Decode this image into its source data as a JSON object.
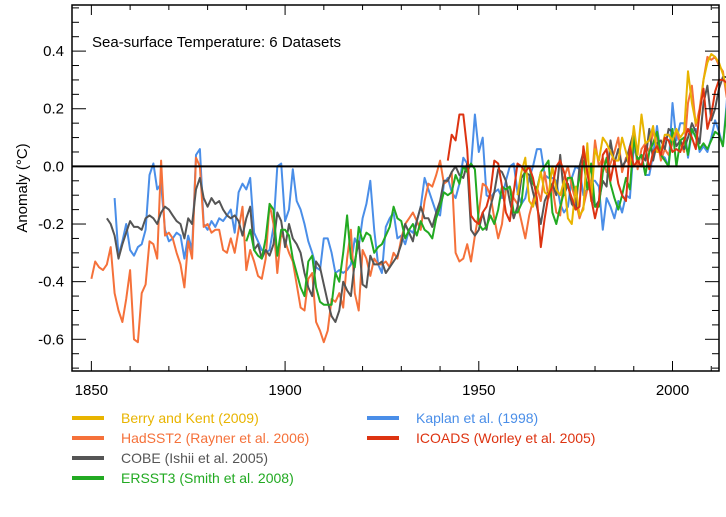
{
  "chart_data": {
    "type": "line",
    "title": "Sea-surface Temperature: 6 Datasets",
    "xlabel": "",
    "ylabel": "Anomaly (°C)",
    "xlim": [
      1845,
      2012
    ],
    "ylim": [
      -0.71,
      0.56
    ],
    "xticks": [
      1850,
      1900,
      1950,
      2000
    ],
    "xtick_labels": [
      "1850",
      "1900",
      "1950",
      "2000"
    ],
    "yticks": [
      -0.6,
      -0.4,
      -0.2,
      0.0,
      0.2,
      0.4
    ],
    "ytick_labels": [
      "-0.6",
      "-0.4",
      "-0.2",
      "0.0",
      "0.2",
      "0.4"
    ],
    "zero_line": true,
    "grid": false,
    "legend_position": "bottom",
    "series": [
      {
        "name": "Berry and Kent (2009)",
        "color": "#E8B400",
        "x_start": 1960,
        "values": [
          -0.1,
          -0.02,
          0.03,
          -0.12,
          -0.14,
          -0.09,
          -0.02,
          -0.09,
          -0.1,
          0.0,
          -0.08,
          -0.1,
          -0.05,
          -0.18,
          -0.2,
          -0.07,
          -0.17,
          -0.15,
          0.08,
          -0.12,
          0.06,
          0.02,
          0.1,
          0.08,
          0.05,
          0.02,
          0.02,
          0.1,
          0.05,
          0.0,
          0.14,
          0.04,
          0.18,
          0.08,
          0.09,
          0.14,
          0.05,
          0.05,
          0.11,
          0.11,
          0.09,
          0.13,
          0.1,
          0.12,
          0.33,
          0.22,
          0.15,
          0.18,
          0.3,
          0.36,
          0.39,
          0.38,
          0.36,
          0.32,
          0.27
        ]
      },
      {
        "name": "HadSST2 (Rayner et al. 2006)",
        "color": "#F5713A",
        "x_start": 1850,
        "values": [
          -0.39,
          -0.33,
          -0.35,
          -0.36,
          -0.34,
          -0.28,
          -0.44,
          -0.5,
          -0.54,
          -0.46,
          -0.36,
          -0.6,
          -0.61,
          -0.44,
          -0.41,
          -0.26,
          -0.27,
          -0.32,
          0.02,
          -0.24,
          -0.23,
          -0.25,
          -0.3,
          -0.34,
          -0.42,
          -0.26,
          -0.32,
          0.03,
          0.0,
          -0.21,
          -0.2,
          -0.23,
          -0.22,
          -0.22,
          -0.29,
          -0.3,
          -0.25,
          -0.3,
          -0.22,
          -0.14,
          -0.36,
          -0.29,
          -0.33,
          -0.38,
          -0.39,
          -0.32,
          -0.13,
          -0.2,
          -0.37,
          -0.23,
          -0.26,
          -0.3,
          -0.33,
          -0.41,
          -0.49,
          -0.5,
          -0.39,
          -0.37,
          -0.54,
          -0.57,
          -0.61,
          -0.57,
          -0.46,
          -0.47,
          -0.44,
          -0.49,
          -0.32,
          -0.22,
          -0.44,
          -0.5,
          -0.29,
          -0.32,
          -0.38,
          -0.32,
          -0.34,
          -0.34,
          -0.33,
          -0.35,
          -0.3,
          -0.32,
          -0.25,
          -0.2,
          -0.18,
          -0.16,
          -0.19,
          -0.22,
          -0.12,
          -0.06,
          -0.07,
          -0.03,
          0.02,
          -0.06,
          -0.05,
          -0.02,
          -0.3,
          -0.33,
          -0.32,
          -0.27,
          -0.33,
          -0.24,
          -0.16,
          -0.06,
          -0.07,
          -0.1,
          -0.18,
          -0.25,
          -0.2,
          -0.08,
          -0.07,
          -0.11,
          -0.13,
          -0.19,
          -0.25,
          -0.17,
          -0.12,
          -0.07,
          -0.12,
          -0.02,
          -0.11,
          -0.07,
          -0.16,
          -0.17,
          -0.04,
          0.0,
          -0.07,
          -0.12,
          -0.18,
          -0.14,
          -0.08,
          -0.08,
          0.09,
          0.0,
          0.03,
          -0.02,
          0.01,
          0.05,
          0.1,
          -0.02,
          0.03,
          0.0,
          0.12,
          -0.01,
          0.06,
          0.08,
          0.05,
          0.12,
          0.1,
          0.02,
          0.06,
          0.04,
          0.08,
          0.12,
          0.08,
          0.05,
          0.22,
          0.28,
          0.14,
          0.2,
          0.3,
          0.38,
          0.37,
          0.38,
          0.35,
          0.33,
          0.24,
          0.37
        ]
      },
      {
        "name": "COBE (Ishii et al. 2005)",
        "color": "#555555",
        "x_start": 1854,
        "values": [
          -0.18,
          -0.2,
          -0.24,
          -0.32,
          -0.27,
          -0.23,
          -0.19,
          -0.21,
          -0.21,
          -0.22,
          -0.18,
          -0.17,
          -0.18,
          -0.2,
          -0.16,
          -0.14,
          -0.15,
          -0.17,
          -0.19,
          -0.2,
          -0.25,
          -0.18,
          -0.2,
          -0.08,
          -0.04,
          -0.11,
          -0.14,
          -0.11,
          -0.13,
          -0.12,
          -0.15,
          -0.17,
          -0.18,
          -0.17,
          -0.19,
          -0.24,
          -0.18,
          -0.14,
          -0.29,
          -0.27,
          -0.32,
          -0.29,
          -0.31,
          -0.27,
          -0.16,
          -0.19,
          -0.28,
          -0.2,
          -0.25,
          -0.27,
          -0.3,
          -0.37,
          -0.42,
          -0.45,
          -0.33,
          -0.35,
          -0.41,
          -0.47,
          -0.52,
          -0.54,
          -0.5,
          -0.4,
          -0.43,
          -0.45,
          -0.33,
          -0.26,
          -0.41,
          -0.42,
          -0.31,
          -0.34,
          -0.34,
          -0.33,
          -0.37,
          -0.35,
          -0.33,
          -0.31,
          -0.27,
          -0.2,
          -0.23,
          -0.26,
          -0.19,
          -0.14,
          -0.18,
          -0.18,
          -0.21,
          -0.16,
          -0.12,
          -0.05,
          -0.05,
          -0.02,
          0.0,
          -0.03,
          -0.04,
          0.01,
          -0.22,
          -0.24,
          -0.22,
          -0.16,
          -0.22,
          -0.14,
          -0.09,
          -0.01,
          -0.02,
          -0.05,
          -0.12,
          -0.18,
          -0.14,
          -0.04,
          -0.02,
          -0.03,
          -0.09,
          -0.14,
          -0.2,
          -0.12,
          -0.09,
          -0.06,
          -0.1,
          0.04,
          -0.1,
          -0.06,
          -0.13,
          -0.15,
          0.0,
          0.05,
          -0.02,
          -0.08,
          -0.14,
          -0.12,
          -0.05,
          -0.07,
          0.09,
          0.01,
          0.06,
          0.0,
          0.02,
          0.07,
          0.12,
          0.02,
          0.04,
          0.02,
          0.13,
          0.02,
          0.08,
          0.09,
          0.06,
          0.13,
          0.12,
          0.07,
          0.09,
          0.06,
          0.1,
          0.15,
          0.12,
          0.08,
          0.22,
          0.28,
          0.16,
          0.2,
          0.27,
          0.31,
          0.31,
          0.3,
          0.31,
          0.28,
          0.24,
          0.22,
          0.32
        ]
      },
      {
        "name": "ERSST3 (Smith et al. 2008)",
        "color": "#22AA22",
        "x_start": 1890,
        "values": [
          -0.26,
          -0.22,
          -0.29,
          -0.31,
          -0.32,
          -0.25,
          -0.13,
          -0.15,
          -0.31,
          -0.22,
          -0.22,
          -0.24,
          -0.32,
          -0.37,
          -0.42,
          -0.45,
          -0.33,
          -0.31,
          -0.42,
          -0.47,
          -0.48,
          -0.48,
          -0.48,
          -0.37,
          -0.4,
          -0.3,
          -0.17,
          -0.32,
          -0.35,
          -0.21,
          -0.26,
          -0.23,
          -0.24,
          -0.3,
          -0.28,
          -0.27,
          -0.24,
          -0.21,
          -0.14,
          -0.18,
          -0.19,
          -0.25,
          -0.22,
          -0.2,
          -0.24,
          -0.19,
          -0.22,
          -0.23,
          -0.25,
          -0.18,
          -0.14,
          -0.09,
          -0.1,
          -0.09,
          -0.03,
          -0.06,
          0.0,
          -0.02,
          0.01,
          -0.01,
          -0.2,
          -0.22,
          -0.21,
          -0.17,
          -0.2,
          -0.15,
          -0.07,
          -0.08,
          -0.07,
          -0.16,
          -0.16,
          -0.13,
          0.0,
          0.0,
          -0.06,
          -0.08,
          -0.02,
          0.0,
          0.02,
          -0.16,
          -0.2,
          -0.14,
          -0.09,
          -0.04,
          -0.04,
          -0.1,
          -0.04,
          0.02,
          -0.08,
          0.01,
          -0.14,
          -0.14,
          -0.02,
          0.03,
          -0.06,
          -0.11,
          -0.15,
          -0.1,
          -0.04,
          -0.08,
          0.1,
          0.02,
          0.04,
          -0.03,
          0.05,
          0.08,
          0.12,
          0.04,
          0.02,
          0.0,
          0.13,
          0.0,
          0.09,
          0.1,
          0.04,
          0.13,
          0.1,
          0.06,
          0.08,
          0.06,
          0.09,
          0.12,
          0.11,
          0.07,
          0.2,
          0.26,
          0.14,
          0.18,
          0.24,
          0.27,
          0.28,
          0.26,
          0.28,
          0.28,
          0.27,
          0.28
        ]
      },
      {
        "name": "Kaplan et al. (1998)",
        "color": "#4A8EE8",
        "x_start": 1856,
        "values": [
          -0.11,
          -0.31,
          -0.26,
          -0.2,
          -0.29,
          -0.31,
          -0.28,
          -0.27,
          -0.22,
          -0.03,
          0.01,
          -0.08,
          -0.06,
          -0.22,
          -0.26,
          -0.25,
          -0.23,
          -0.24,
          -0.32,
          -0.24,
          -0.29,
          0.04,
          0.06,
          -0.2,
          -0.22,
          -0.19,
          -0.21,
          -0.18,
          -0.19,
          -0.17,
          -0.15,
          -0.23,
          -0.09,
          -0.06,
          -0.08,
          -0.04,
          -0.23,
          -0.26,
          -0.29,
          -0.3,
          -0.29,
          -0.21,
          0.0,
          0.01,
          -0.19,
          -0.15,
          -0.01,
          -0.12,
          -0.15,
          -0.2,
          -0.26,
          -0.3,
          -0.35,
          -0.36,
          -0.25,
          -0.25,
          -0.3,
          -0.37,
          -0.36,
          -0.37,
          -0.36,
          -0.34,
          -0.25,
          -0.28,
          -0.18,
          -0.13,
          -0.05,
          -0.22,
          -0.34,
          -0.37,
          -0.21,
          -0.18,
          -0.16,
          -0.25,
          -0.24,
          -0.27,
          -0.22,
          -0.23,
          -0.19,
          -0.14,
          -0.04,
          -0.08,
          -0.12,
          -0.16,
          -0.17,
          -0.06,
          -0.04,
          -0.09,
          -0.11,
          -0.06,
          0.03,
          0.01,
          0.0,
          0.18,
          0.05,
          0.1,
          -0.1,
          -0.11,
          -0.09,
          -0.08,
          -0.11,
          -0.05,
          0.0,
          0.01,
          -0.09,
          -0.13,
          -0.11,
          -0.04,
          0.0,
          0.06,
          0.06,
          -0.03,
          -0.04,
          -0.04,
          -0.05,
          -0.13,
          -0.16,
          -0.14,
          -0.04,
          0.0,
          -0.01,
          -0.1,
          -0.08,
          -0.05,
          -0.05,
          -0.07,
          -0.22,
          -0.11,
          -0.14,
          -0.18,
          -0.12,
          -0.16,
          -0.1,
          -0.11,
          0.07,
          0.02,
          0.04,
          -0.03,
          -0.03,
          0.04,
          0.14,
          0.04,
          0.03,
          0.0,
          0.22,
          0.09,
          0.15,
          0.15,
          0.03,
          0.12,
          0.13,
          0.05,
          0.07,
          0.05,
          0.1,
          0.16,
          0.12,
          0.07,
          0.22,
          0.43,
          0.2,
          0.16,
          0.26,
          0.31,
          0.33,
          0.31,
          0.31,
          0.28,
          0.22
        ]
      },
      {
        "name": "ICOADS (Worley et al. 2005)",
        "color": "#DD3311",
        "x_start": 1942,
        "values": [
          0.02,
          0.11,
          0.09,
          0.18,
          0.18,
          0.06,
          -0.17,
          -0.19,
          -0.2,
          -0.16,
          -0.14,
          -0.09,
          0.02,
          0.01,
          -0.07,
          -0.16,
          -0.19,
          -0.09,
          0.01,
          0.0,
          -0.02,
          0.0,
          -0.04,
          -0.11,
          -0.28,
          -0.18,
          -0.1,
          -0.07,
          0.0,
          0.02,
          -0.02,
          -0.07,
          -0.11,
          -0.15,
          -0.14,
          0.07,
          -0.02,
          -0.11,
          -0.18,
          -0.12,
          0.04,
          0.06,
          -0.05,
          0.02,
          -0.06,
          -0.1,
          -0.12,
          0.07,
          0.0,
          0.02,
          0.0,
          0.07,
          -0.01,
          0.05,
          0.07,
          0.04,
          0.1,
          0.09,
          0.05,
          0.06,
          0.05,
          0.09,
          0.13,
          0.1,
          0.06,
          0.19,
          0.27,
          0.13,
          0.18,
          0.26,
          0.3,
          0.3,
          0.29,
          0.31,
          0.28
        ]
      }
    ]
  },
  "legend": {
    "items": [
      {
        "label": "Berry and Kent (2009)",
        "color": "#E8B400"
      },
      {
        "label": "HadSST2 (Rayner et al. 2006)",
        "color": "#F5713A"
      },
      {
        "label": "COBE (Ishii et al. 2005)",
        "color": "#555555"
      },
      {
        "label": "ERSST3 (Smith et al. 2008)",
        "color": "#22AA22"
      },
      {
        "label": "Kaplan et al. (1998)",
        "color": "#4A8EE8"
      },
      {
        "label": "ICOADS (Worley et al. 2005)",
        "color": "#DD3311"
      }
    ]
  }
}
